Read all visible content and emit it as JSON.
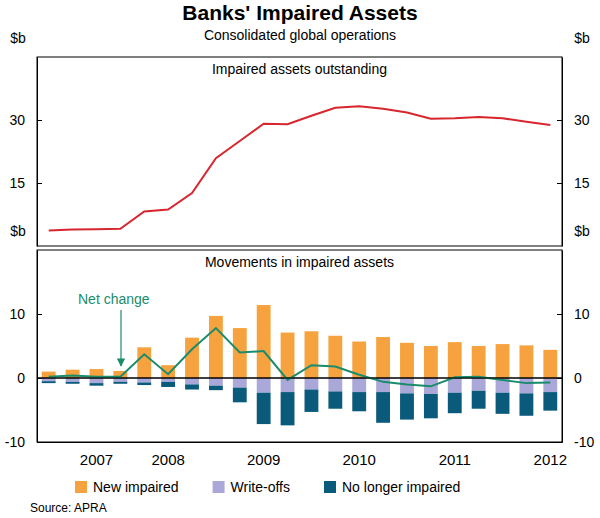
{
  "title": "Banks' Impaired Assets",
  "subtitle": "Consolidated global operations",
  "source": "Source: APRA",
  "chart_data": [
    {
      "type": "line",
      "title": "Impaired assets outstanding",
      "ylabel": "$b",
      "ylim": [
        0,
        45
      ],
      "yticks": [
        15,
        30
      ],
      "grid": false,
      "tick_labels": "y",
      "series": [
        {
          "name": "Impaired assets outstanding",
          "color": "#d7262e",
          "line_style": "solid",
          "values": [
            3.7,
            3.9,
            4.0,
            4.1,
            8.2,
            8.7,
            12.6,
            20.9,
            25.0,
            29.1,
            29.0,
            31.0,
            32.9,
            33.3,
            32.7,
            31.8,
            30.3,
            30.4,
            30.7,
            30.4,
            29.6,
            28.8
          ]
        }
      ]
    },
    {
      "type": "bar",
      "title": "Movements in impaired assets",
      "ylabel": "$b",
      "ylim": [
        -10,
        20
      ],
      "yticks": [
        -10,
        0,
        10
      ],
      "grid": false,
      "stacked": true,
      "legend": "bottom",
      "categories": [
        null,
        null,
        "2007",
        null,
        null,
        "2008",
        null,
        null,
        null,
        "2009",
        null,
        null,
        null,
        "2010",
        null,
        null,
        null,
        "2011",
        null,
        null,
        null,
        "2012"
      ],
      "series": [
        {
          "name": "New impaired",
          "type": "bar",
          "color": "#f6a33f",
          "values": [
            1.0,
            1.3,
            1.4,
            1.1,
            4.8,
            2.0,
            6.3,
            9.7,
            7.8,
            11.4,
            7.1,
            7.3,
            6.6,
            5.7,
            6.4,
            5.5,
            5.0,
            5.6,
            5.0,
            5.3,
            5.1,
            4.4
          ]
        },
        {
          "name": "Write-offs",
          "type": "bar",
          "color": "#a9a8d8",
          "values": [
            -0.5,
            -0.6,
            -0.8,
            -0.6,
            -0.7,
            -0.6,
            -1.0,
            -1.2,
            -1.5,
            -2.3,
            -2.2,
            -1.8,
            -2.1,
            -2.2,
            -2.2,
            -2.4,
            -2.5,
            -2.3,
            -2.0,
            -2.3,
            -2.4,
            -2.2
          ]
        },
        {
          "name": "No longer impaired",
          "type": "bar",
          "color": "#0a5a7c",
          "values": [
            -0.3,
            -0.3,
            -0.4,
            -0.3,
            -0.4,
            -0.8,
            -0.8,
            -0.7,
            -2.3,
            -4.9,
            -5.2,
            -3.5,
            -2.7,
            -3.0,
            -4.8,
            -4.1,
            -3.8,
            -3.2,
            -2.8,
            -3.3,
            -3.5,
            -2.9
          ]
        },
        {
          "name": "Net change",
          "type": "line",
          "color": "#1a8c6c",
          "line_style": "solid",
          "values": [
            0.2,
            0.4,
            0.2,
            0.2,
            3.7,
            0.6,
            4.5,
            7.8,
            4.0,
            4.2,
            -0.3,
            2.0,
            1.8,
            0.5,
            -0.6,
            -1.0,
            -1.3,
            0.1,
            0.2,
            -0.3,
            -0.8,
            -0.7
          ]
        }
      ]
    }
  ]
}
